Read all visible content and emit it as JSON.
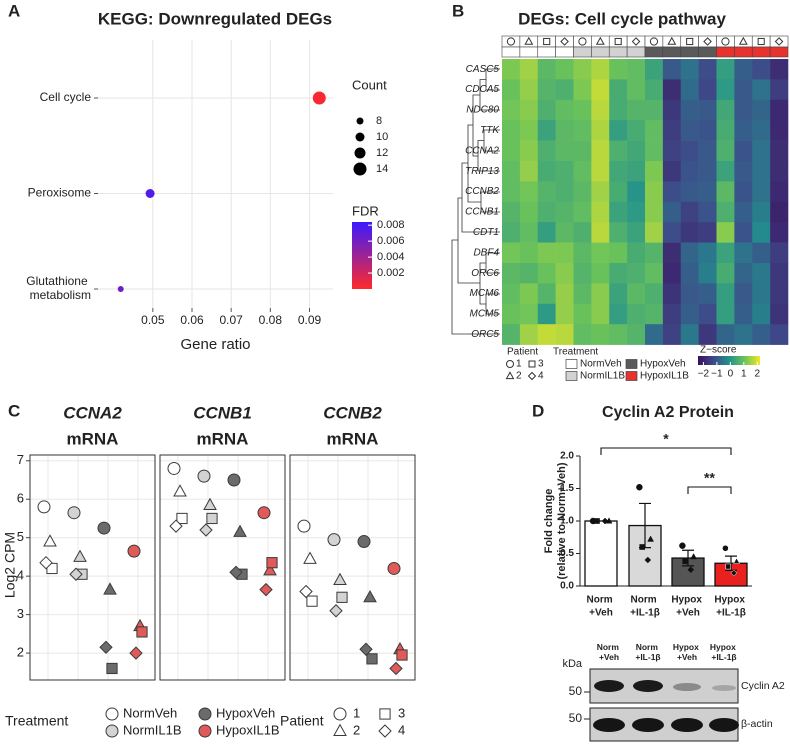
{
  "chart_data": [
    {
      "panel": "A",
      "type": "dotplot",
      "title": "KEGG: Downregulated DEGs",
      "xlabel": "Gene ratio",
      "categories": [
        "Cell cycle",
        "Peroxisome",
        "Glutathione metabolism"
      ],
      "x": [
        0.0925,
        0.0493,
        0.0418
      ],
      "counts": [
        14,
        10,
        7
      ],
      "fdr": [
        0.0003,
        0.0075,
        0.0062
      ],
      "xlim": [
        0.036,
        0.096
      ],
      "xticks": [
        0.05,
        0.06,
        0.07,
        0.08,
        0.09
      ],
      "grid": true,
      "size_legend": {
        "title": "Count",
        "values": [
          8,
          10,
          12,
          14
        ]
      },
      "color_legend": {
        "title": "FDR",
        "lim": [
          0,
          0.0084
        ],
        "ticks": [
          0.002,
          0.004,
          0.006,
          0.008
        ],
        "low_color": "#ff2a2a",
        "high_color": "#3a1aff"
      }
    },
    {
      "panel": "B",
      "type": "heatmap",
      "title": "DEGs: Cell cycle pathway",
      "rows": [
        "CASC5",
        "CDCA5",
        "NDC80",
        "TTK",
        "CCNA2",
        "TRIP13",
        "CCNB2",
        "CCNB1",
        "CDT1",
        "DBF4",
        "ORC6",
        "MCM6",
        "MCM5",
        "ORC5"
      ],
      "values": [
        [
          1.2,
          1.5,
          0.8,
          1.0,
          1.3,
          1.6,
          1.0,
          0.9,
          0.3,
          -1.0,
          -0.6,
          -1.2,
          0.2,
          -0.9,
          -1.2,
          -1.8
        ],
        [
          1.0,
          1.4,
          0.7,
          0.6,
          1.2,
          1.8,
          0.5,
          0.9,
          0.5,
          -1.8,
          -0.7,
          -1.3,
          0.1,
          -1.0,
          -0.6,
          -1.5
        ],
        [
          1.1,
          1.3,
          0.6,
          0.9,
          1.0,
          1.7,
          0.5,
          0.7,
          0.7,
          -1.6,
          -0.9,
          -1.0,
          0.4,
          -1.0,
          -0.8,
          -1.9
        ],
        [
          1.0,
          1.2,
          0.3,
          0.8,
          0.9,
          1.6,
          0.2,
          0.5,
          0.9,
          -1.5,
          -1.0,
          -1.1,
          0.5,
          -0.9,
          -0.7,
          -1.9
        ],
        [
          1.0,
          1.3,
          0.6,
          0.8,
          0.8,
          1.7,
          0.6,
          0.4,
          0.9,
          -1.4,
          -1.2,
          -1.0,
          0.6,
          -1.1,
          -0.6,
          -1.8
        ],
        [
          0.9,
          1.4,
          0.5,
          0.6,
          0.9,
          1.7,
          0.4,
          0.3,
          1.2,
          -1.6,
          -1.1,
          -1.0,
          0.3,
          -1.0,
          -0.6,
          -1.8
        ],
        [
          0.9,
          1.1,
          0.7,
          0.6,
          0.8,
          1.5,
          0.5,
          0.0,
          1.3,
          -1.2,
          -1.0,
          -0.9,
          0.8,
          -1.1,
          -0.6,
          -1.9
        ],
        [
          0.7,
          1.0,
          0.6,
          0.7,
          0.9,
          1.6,
          0.3,
          0.1,
          1.3,
          -0.9,
          -1.4,
          -1.1,
          0.6,
          -0.9,
          -0.4,
          -2.0
        ],
        [
          0.6,
          0.9,
          0.2,
          0.8,
          0.6,
          1.7,
          0.6,
          0.3,
          1.5,
          -1.2,
          -1.6,
          -1.5,
          1.3,
          -1.1,
          -0.2,
          -1.9
        ],
        [
          1.1,
          1.0,
          1.2,
          1.2,
          0.8,
          1.1,
          1.0,
          0.5,
          0.7,
          -1.8,
          -0.8,
          -0.5,
          0.3,
          -0.6,
          -0.9,
          -1.5
        ],
        [
          0.8,
          0.7,
          1.0,
          1.3,
          0.7,
          1.0,
          0.5,
          0.6,
          0.9,
          -1.9,
          -0.9,
          -0.4,
          0.5,
          -0.8,
          -0.5,
          -1.6
        ],
        [
          0.9,
          1.2,
          0.7,
          1.4,
          0.8,
          1.3,
          0.3,
          0.8,
          0.6,
          -1.7,
          -1.0,
          -0.9,
          0.2,
          -1.0,
          -0.5,
          -1.6
        ],
        [
          1.0,
          1.1,
          0.1,
          1.4,
          1.0,
          1.3,
          0.2,
          0.6,
          0.7,
          -1.5,
          -0.9,
          -1.2,
          0.2,
          -0.9,
          -0.4,
          -1.7
        ],
        [
          0.7,
          1.5,
          1.8,
          1.7,
          0.9,
          1.0,
          0.9,
          0.7,
          -0.7,
          -1.4,
          -0.5,
          -1.6,
          -0.8,
          -0.6,
          -0.9,
          -1.3
        ]
      ],
      "zlim": [
        -2.4,
        2.2
      ],
      "zticks": [
        {
          "value": -2,
          "label": "−2"
        },
        {
          "value": -1,
          "label": "−1"
        },
        0,
        1,
        2
      ],
      "colorscale": [
        "#3b0f5e",
        "#3e4a89",
        "#21908d",
        "#6cc35a",
        "#f2e826"
      ],
      "colorbar_title": "Z−score",
      "patient_legend": {
        "title": "Patient",
        "labels": [
          "1",
          "2",
          "3",
          "4"
        ]
      },
      "treatment_legend": {
        "title": "Treatment",
        "labels": [
          "NormVeh",
          "NormIL1B",
          "HypoxVeh",
          "HypoxIL1B"
        ],
        "colors": [
          "#ffffff",
          "#d2d2d2",
          "#5a5a5a",
          "#e8322e"
        ]
      },
      "column_patient": [
        0,
        1,
        2,
        3,
        0,
        1,
        2,
        3,
        0,
        1,
        2,
        3,
        0,
        1,
        2,
        3
      ],
      "column_treatment": [
        0,
        0,
        0,
        0,
        1,
        1,
        1,
        1,
        2,
        2,
        2,
        2,
        3,
        3,
        3,
        3
      ]
    },
    {
      "panel": "C",
      "type": "dot-facets",
      "ylabel": "Log2 CPM",
      "ylim": [
        1.3,
        7.15
      ],
      "yticks": [
        2,
        3,
        4,
        5,
        6,
        7
      ],
      "grid": true,
      "treatments": {
        "title": "Treatment",
        "labels": [
          "NormVeh",
          "NormIL1B",
          "HypoxVeh",
          "HypoxIL1B"
        ],
        "colors": [
          "#ffffff",
          "#d3d3d3",
          "#6b6b6b",
          "#e05a5a"
        ]
      },
      "patients": {
        "title": "Patient",
        "labels": [
          "1",
          "2",
          "3",
          "4"
        ]
      },
      "facets": [
        {
          "gene": "CCNA2",
          "subtitle": "mRNA",
          "values": [
            [
              5.8,
              4.9,
              4.2,
              4.35
            ],
            [
              5.65,
              4.5,
              4.05,
              4.05
            ],
            [
              5.25,
              3.65,
              1.6,
              2.15
            ],
            [
              4.65,
              2.7,
              2.55,
              2.0
            ]
          ]
        },
        {
          "gene": "CCNB1",
          "subtitle": "mRNA",
          "values": [
            [
              6.8,
              6.2,
              5.5,
              5.3
            ],
            [
              6.6,
              5.85,
              5.5,
              5.2
            ],
            [
              6.5,
              5.15,
              4.05,
              4.1
            ],
            [
              5.65,
              4.15,
              4.35,
              3.65
            ]
          ]
        },
        {
          "gene": "CCNB2",
          "subtitle": "mRNA",
          "values": [
            [
              5.3,
              4.45,
              3.35,
              3.6
            ],
            [
              4.95,
              3.9,
              3.45,
              3.1
            ],
            [
              4.9,
              3.45,
              1.85,
              2.1
            ],
            [
              4.2,
              2.1,
              1.95,
              1.6
            ]
          ]
        }
      ]
    },
    {
      "panel": "D",
      "type": "bar",
      "title": "Cyclin A2 Protein",
      "ylabel": "Fold change",
      "ylabel2": "(relative to Norm+Veh)",
      "categories": [
        "Norm +Veh",
        "Norm +IL-1β",
        "Hypox +Veh",
        "Hypox +IL-1β"
      ],
      "values": [
        1.0,
        0.93,
        0.43,
        0.35
      ],
      "errors": [
        null,
        0.34,
        0.12,
        0.11
      ],
      "points": [
        [
          1,
          1,
          1,
          1
        ],
        [
          1.52,
          0.72,
          0.6,
          0.4
        ],
        [
          0.62,
          0.45,
          0.38,
          0.25
        ],
        [
          0.58,
          0.38,
          0.3,
          0.2
        ]
      ],
      "colors": [
        "#ffffff",
        "#d9d9d9",
        "#555555",
        "#e8201e"
      ],
      "ylim": [
        0,
        2.0
      ],
      "yticks": [
        {
          "value": 0,
          "label": "0.0"
        },
        0.5,
        {
          "value": 1,
          "label": "1.0"
        },
        1.5,
        {
          "value": 2,
          "label": "2.0"
        }
      ],
      "significance": [
        {
          "from": 0,
          "to": 3,
          "label": "*"
        },
        {
          "from": 2,
          "to": 3,
          "label": "**"
        }
      ],
      "blot": {
        "unit": "kDa",
        "lanes": [
          "Norm +Veh",
          "Norm +IL-1β",
          "Hypox +Veh",
          "Hypox +IL-1β"
        ],
        "rows": [
          {
            "marker": 50,
            "label": "Cyclin A2"
          },
          {
            "marker": 50,
            "label": "β-actin"
          }
        ]
      }
    }
  ]
}
